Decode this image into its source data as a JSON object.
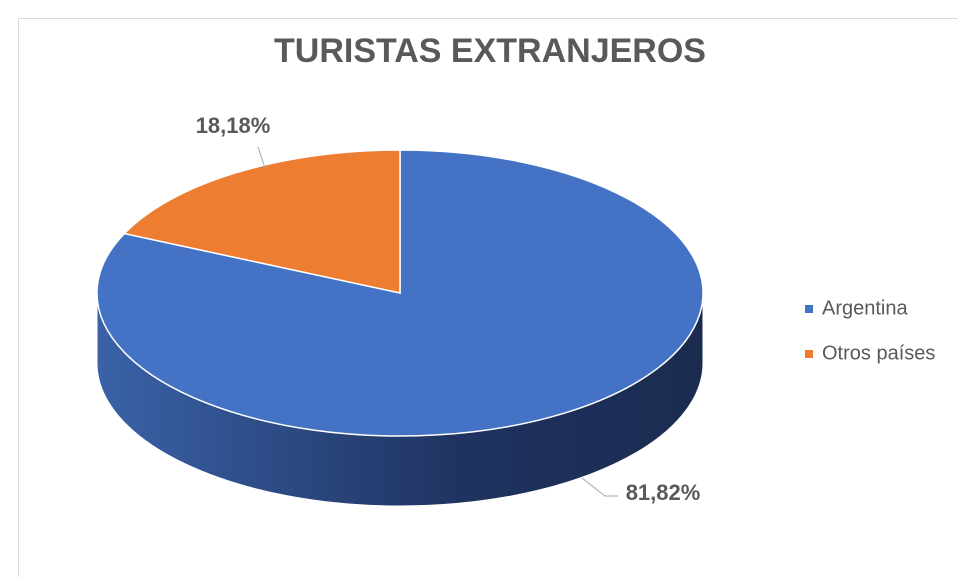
{
  "chart_data": {
    "type": "pie",
    "title": "TURISTAS EXTRANJEROS",
    "categories": [
      "Argentina",
      "Otros países"
    ],
    "values": [
      81.82,
      18.18
    ],
    "value_labels": [
      "81,82%",
      "18,18%"
    ],
    "colors": [
      "#4472c4",
      "#ed7d31"
    ],
    "legend": "right"
  }
}
